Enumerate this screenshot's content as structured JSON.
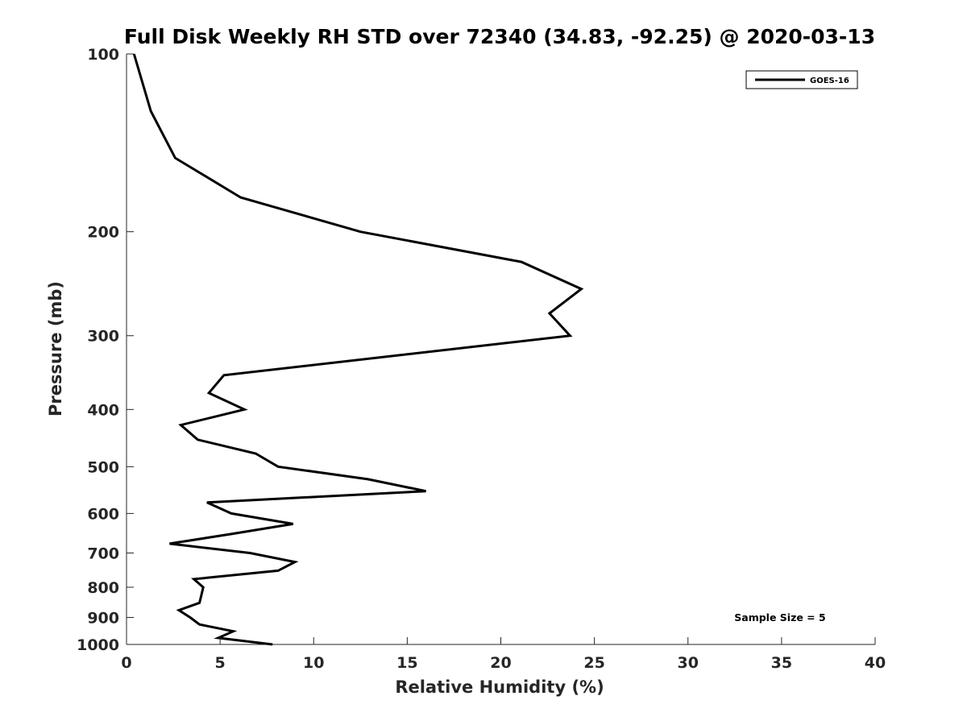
{
  "chart_data": {
    "type": "line",
    "title": "Full Disk Weekly RH STD over 72340 (34.83, -92.25) @ 2020-03-13",
    "xlabel": "Relative Humidity (%)",
    "ylabel": "Pressure (mb)",
    "xlim": [
      0,
      40
    ],
    "ylim": [
      100,
      1000
    ],
    "y_scale": "log",
    "y_reversed": true,
    "grid": false,
    "x_ticks": [
      0,
      5,
      10,
      15,
      20,
      25,
      30,
      35,
      40
    ],
    "y_ticks": [
      100,
      200,
      300,
      400,
      500,
      600,
      700,
      800,
      900,
      1000
    ],
    "legend": {
      "position": "top-right",
      "entries": [
        "GOES-16"
      ]
    },
    "annotation": "Sample Size = 5",
    "series": [
      {
        "name": "GOES-16",
        "color": "#000000",
        "points": [
          {
            "x": 0.4,
            "y": 100
          },
          {
            "x": 1.3,
            "y": 125
          },
          {
            "x": 2.6,
            "y": 150
          },
          {
            "x": 6.1,
            "y": 175
          },
          {
            "x": 12.5,
            "y": 200
          },
          {
            "x": 21.1,
            "y": 225
          },
          {
            "x": 24.3,
            "y": 250
          },
          {
            "x": 22.6,
            "y": 275
          },
          {
            "x": 23.7,
            "y": 300
          },
          {
            "x": 5.2,
            "y": 350
          },
          {
            "x": 4.4,
            "y": 375
          },
          {
            "x": 6.3,
            "y": 400
          },
          {
            "x": 2.9,
            "y": 425
          },
          {
            "x": 3.8,
            "y": 450
          },
          {
            "x": 6.9,
            "y": 475
          },
          {
            "x": 8.1,
            "y": 500
          },
          {
            "x": 12.9,
            "y": 525
          },
          {
            "x": 16.0,
            "y": 550
          },
          {
            "x": 4.3,
            "y": 575
          },
          {
            "x": 5.6,
            "y": 600
          },
          {
            "x": 8.9,
            "y": 625
          },
          {
            "x": 5.6,
            "y": 650
          },
          {
            "x": 2.3,
            "y": 675
          },
          {
            "x": 6.6,
            "y": 700
          },
          {
            "x": 9.0,
            "y": 725
          },
          {
            "x": 8.1,
            "y": 750
          },
          {
            "x": 3.6,
            "y": 775
          },
          {
            "x": 4.1,
            "y": 800
          },
          {
            "x": 4.0,
            "y": 825
          },
          {
            "x": 3.9,
            "y": 850
          },
          {
            "x": 2.8,
            "y": 875
          },
          {
            "x": 3.4,
            "y": 900
          },
          {
            "x": 3.9,
            "y": 925
          },
          {
            "x": 5.7,
            "y": 950
          },
          {
            "x": 4.9,
            "y": 975
          },
          {
            "x": 7.8,
            "y": 1000
          }
        ]
      }
    ]
  }
}
